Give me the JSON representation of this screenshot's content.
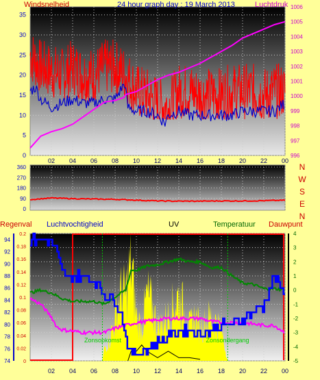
{
  "header": {
    "left_label": "Windsnelheid",
    "title": "24 hour graph day : 19 March 2013",
    "right_label": "Luchtdruk"
  },
  "labels2": {
    "regenval": "Regenval",
    "luchtvochtigheid": "Luchtvochtigheid",
    "uv": "UV",
    "temperatuur": "Temperatuur",
    "dauwpunt": "Dauwpunt",
    "zonsopkomst": "Zonsopkomst",
    "zonsondergang": "Zonsondergang"
  },
  "colors": {
    "background": "#ffff99",
    "gust": "#ff0000",
    "wind": "#0000cc",
    "pressure": "#ff00ff",
    "direction": "#ff0000",
    "humidity": "#0000ff",
    "temperature": "#008800",
    "dewpoint": "#ff00ff",
    "uv": "#ffff00",
    "rain": "#ff0000",
    "solar": "#000000",
    "axis_left": "#0000cc",
    "axis_right": "#cc0000",
    "sun_labels": "#00cc00"
  },
  "chart_data": [
    {
      "type": "line",
      "x_ticks": [
        "02",
        "04",
        "06",
        "08",
        "10",
        "12",
        "14",
        "16",
        "18",
        "20",
        "22",
        "00"
      ],
      "y_left_ticks": [
        "0",
        "5",
        "10",
        "15",
        "20",
        "25",
        "30",
        "35"
      ],
      "y_right_ticks": [
        "996",
        "997",
        "998",
        "999",
        "1000",
        "1001",
        "1002",
        "1003",
        "1004",
        "1005",
        "1006"
      ],
      "ylim_left": [
        0,
        37
      ],
      "ylim_right": [
        996,
        1006
      ],
      "xlim_hours": [
        0,
        24
      ],
      "series": [
        {
          "name": "Windsnelheid",
          "axis": "left",
          "points": [
            [
              0,
              25
            ],
            [
              1,
              22
            ],
            [
              2,
              21
            ],
            [
              3,
              20
            ],
            [
              4,
              22
            ],
            [
              5,
              20
            ],
            [
              6,
              20
            ],
            [
              7,
              22
            ],
            [
              8,
              22
            ],
            [
              9,
              20
            ],
            [
              10,
              16
            ],
            [
              11,
              15
            ],
            [
              12,
              13
            ],
            [
              13,
              12
            ],
            [
              14,
              16
            ],
            [
              15,
              16
            ],
            [
              16,
              15
            ],
            [
              17,
              15
            ],
            [
              18,
              15
            ],
            [
              19,
              16
            ],
            [
              20,
              16
            ],
            [
              21,
              16
            ],
            [
              22,
              15
            ],
            [
              23,
              16
            ],
            [
              24,
              16
            ]
          ]
        },
        {
          "axis": "left",
          "points": [
            [
              0,
              16
            ],
            [
              0.5,
              17
            ],
            [
              1,
              14
            ],
            [
              2,
              12
            ],
            [
              3,
              13
            ],
            [
              4,
              14
            ],
            [
              5,
              13
            ],
            [
              6,
              13
            ],
            [
              7,
              14
            ],
            [
              8,
              14
            ],
            [
              8.9,
              18
            ],
            [
              9.2,
              12
            ],
            [
              10,
              11
            ],
            [
              11,
              11
            ],
            [
              12,
              10
            ],
            [
              12.7,
              8
            ],
            [
              13,
              10
            ],
            [
              14,
              11
            ],
            [
              15,
              10
            ],
            [
              16,
              10
            ],
            [
              17,
              10
            ],
            [
              18,
              10
            ],
            [
              19,
              10
            ],
            [
              20,
              11
            ],
            [
              21,
              11
            ],
            [
              22,
              11
            ],
            [
              23,
              11
            ],
            [
              24,
              13
            ]
          ]
        },
        {
          "name": "Luchtdruk",
          "axis": "right",
          "points": [
            [
              0,
              996.5
            ],
            [
              1,
              997.3
            ],
            [
              2,
              997.6
            ],
            [
              3,
              997.8
            ],
            [
              4,
              998.1
            ],
            [
              5,
              998.6
            ],
            [
              6,
              999.1
            ],
            [
              7,
              999.6
            ],
            [
              8,
              999.7
            ],
            [
              8.8,
              999.9
            ],
            [
              9,
              1000.1
            ],
            [
              10,
              1000.3
            ],
            [
              11,
              1000.7
            ],
            [
              12,
              1001.1
            ],
            [
              13,
              1001.4
            ],
            [
              14,
              1001.6
            ],
            [
              15,
              1001.9
            ],
            [
              16,
              1002.2
            ],
            [
              17,
              1002.6
            ],
            [
              18,
              1003.0
            ],
            [
              19,
              1003.4
            ],
            [
              20,
              1003.9
            ],
            [
              21,
              1004.2
            ],
            [
              22,
              1004.5
            ],
            [
              23,
              1004.8
            ],
            [
              24,
              1005.0
            ]
          ]
        }
      ]
    },
    {
      "type": "line",
      "x_ticks": [
        "02",
        "04",
        "06",
        "08",
        "10",
        "12",
        "14",
        "16",
        "18",
        "20",
        "22",
        "00"
      ],
      "y_ticks": [
        "0",
        "90",
        "180",
        "270",
        "360"
      ],
      "ylim": [
        0,
        360
      ],
      "compass": [
        "N",
        "W",
        "S",
        "E",
        "N"
      ],
      "series": [
        {
          "points": [
            [
              0,
              80
            ],
            [
              2,
              93
            ],
            [
              4,
              88
            ],
            [
              6,
              84
            ],
            [
              8,
              82
            ],
            [
              10,
              75
            ],
            [
              12,
              68
            ],
            [
              14,
              66
            ],
            [
              16,
              66
            ],
            [
              18,
              68
            ],
            [
              20,
              68
            ],
            [
              22,
              70
            ],
            [
              24,
              74
            ]
          ]
        }
      ]
    },
    {
      "type": "line",
      "x_ticks": [
        "02",
        "04",
        "06",
        "08",
        "10",
        "12",
        "14",
        "16",
        "18",
        "20",
        "22",
        "00"
      ],
      "humidity_ticks": [
        "74",
        "76",
        "78",
        "80",
        "82",
        "84",
        "86",
        "88",
        "90",
        "92",
        "94"
      ],
      "humidity_lim": [
        74,
        95
      ],
      "rain_ticks": [
        "0",
        "0.02",
        "0.04",
        "0.06",
        "0.08",
        "0.1",
        "0.12",
        "0.14",
        "0.16",
        "0.18",
        "0.2"
      ],
      "rain_lim": [
        0,
        0.2
      ],
      "temp_ticks": [
        "-5",
        "-4",
        "-3",
        "-2",
        "-1",
        "0",
        "1",
        "2",
        "3",
        "4"
      ],
      "temp_lim": [
        -5,
        4
      ],
      "sunrise_hour": 6.8,
      "sunset_hour": 18.6,
      "series": [
        {
          "name": "Luchtvochtigheid",
          "axis": "humidity",
          "points": [
            [
              0,
              94
            ],
            [
              1,
              94
            ],
            [
              2,
              94
            ],
            [
              2.5,
              92
            ],
            [
              3,
              89
            ],
            [
              3.5,
              88
            ],
            [
              4,
              88
            ],
            [
              5,
              88
            ],
            [
              6,
              87
            ],
            [
              7,
              85
            ],
            [
              8,
              84
            ],
            [
              8.5,
              82
            ],
            [
              9,
              78
            ],
            [
              9.5,
              75
            ],
            [
              10,
              75
            ],
            [
              11,
              76
            ],
            [
              12,
              77
            ],
            [
              13,
              78
            ],
            [
              14,
              79
            ],
            [
              15,
              79
            ],
            [
              16,
              78
            ],
            [
              17,
              79
            ],
            [
              18,
              80
            ],
            [
              19,
              80
            ],
            [
              20,
              81
            ],
            [
              21,
              82
            ],
            [
              22,
              83
            ],
            [
              23,
              88
            ],
            [
              23.5,
              86
            ],
            [
              24,
              85
            ]
          ]
        },
        {
          "name": "Temperatuur",
          "axis": "temp",
          "points": [
            [
              0,
              -0.2
            ],
            [
              1,
              0
            ],
            [
              2,
              -0.2
            ],
            [
              3,
              -0.6
            ],
            [
              4,
              -0.8
            ],
            [
              5,
              -0.8
            ],
            [
              6,
              -0.8
            ],
            [
              7,
              -1
            ],
            [
              8,
              -0.5
            ],
            [
              9,
              0
            ],
            [
              9.5,
              1.4
            ],
            [
              10,
              1.4
            ],
            [
              11,
              1.7
            ],
            [
              12,
              1.8
            ],
            [
              13,
              2
            ],
            [
              14,
              2.2
            ],
            [
              15,
              2
            ],
            [
              16,
              2
            ],
            [
              17,
              1.6
            ],
            [
              18,
              1.6
            ],
            [
              19,
              1
            ],
            [
              20,
              0.5
            ],
            [
              21,
              0.4
            ],
            [
              22,
              0.1
            ],
            [
              23,
              0.1
            ],
            [
              24,
              0
            ]
          ]
        },
        {
          "name": "Dauwpunt",
          "axis": "temp",
          "points": [
            [
              0,
              -0.6
            ],
            [
              1,
              -1
            ],
            [
              2,
              -1.9
            ],
            [
              2.5,
              -2.6
            ],
            [
              3,
              -2.8
            ],
            [
              4,
              -2.9
            ],
            [
              5,
              -3
            ],
            [
              6,
              -3
            ],
            [
              7,
              -3
            ],
            [
              8,
              -2.7
            ],
            [
              9,
              -2.5
            ],
            [
              10,
              -2.3
            ],
            [
              11,
              -2.2
            ],
            [
              12,
              -2.1
            ],
            [
              13,
              -2
            ],
            [
              14,
              -2
            ],
            [
              15,
              -2
            ],
            [
              16,
              -2
            ],
            [
              17,
              -2.2
            ],
            [
              18,
              -2.3
            ],
            [
              19,
              -2.3
            ],
            [
              20,
              -2.3
            ],
            [
              21,
              -2.4
            ],
            [
              22,
              -2.5
            ],
            [
              23,
              -2.5
            ],
            [
              24,
              -3
            ]
          ]
        },
        {
          "name": "UV",
          "axis": "uv",
          "points": [
            [
              6.8,
              0
            ],
            [
              7,
              1.2
            ],
            [
              7.5,
              2
            ],
            [
              8,
              4
            ],
            [
              8.5,
              6
            ],
            [
              9,
              6
            ],
            [
              9.5,
              9
            ],
            [
              10,
              4
            ],
            [
              10.5,
              3
            ],
            [
              11,
              6
            ],
            [
              11.5,
              5
            ],
            [
              12,
              3
            ],
            [
              13,
              4
            ],
            [
              13.5,
              5
            ],
            [
              14,
              6
            ],
            [
              15,
              3
            ],
            [
              15.5,
              4
            ],
            [
              16,
              3
            ],
            [
              17,
              4
            ],
            [
              18,
              3
            ],
            [
              18.6,
              0
            ]
          ]
        },
        {
          "name": "Regenval",
          "axis": "rain",
          "points": [
            [
              0,
              0
            ],
            [
              4,
              0
            ],
            [
              4,
              0.2
            ],
            [
              24,
              0.2
            ]
          ]
        },
        {
          "axis": "solar",
          "points": [
            [
              9.2,
              0
            ],
            [
              9.5,
              0.3
            ],
            [
              10,
              0.3
            ],
            [
              10.5,
              0.5
            ],
            [
              11,
              0.3
            ],
            [
              12,
              0.1
            ],
            [
              13,
              0.3
            ],
            [
              14,
              0.1
            ],
            [
              15,
              0.1
            ],
            [
              16,
              0.05
            ]
          ]
        }
      ]
    }
  ]
}
